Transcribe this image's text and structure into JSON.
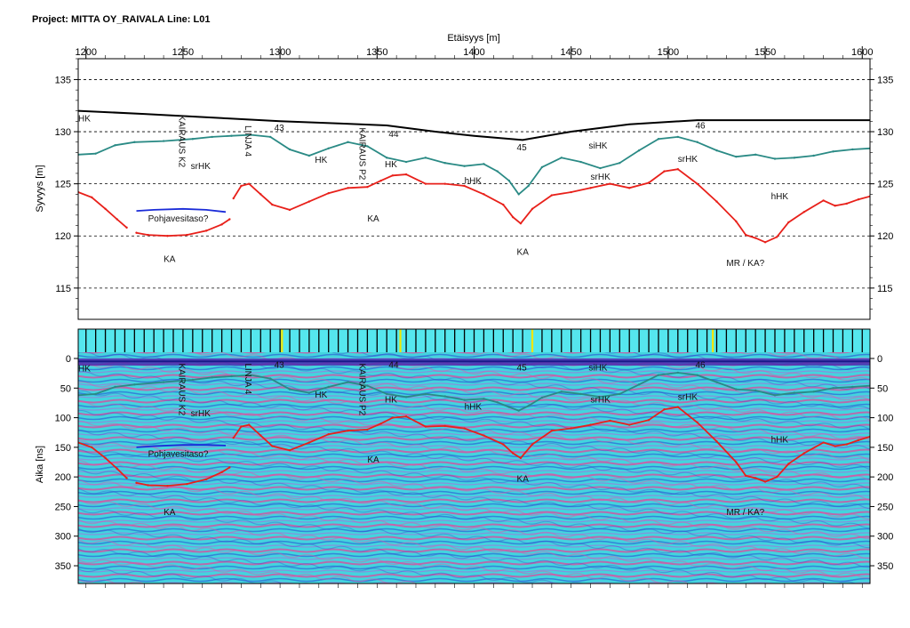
{
  "header": {
    "title": "Project: MITTA OY_RAIVALA  Line: L01"
  },
  "colors": {
    "surface": "#000000",
    "layer_hk": "#2a8a85",
    "bedrock_ka": "#e8201a",
    "groundwater": "#1a2bd8",
    "gpr_bg": "#41d2dc",
    "marker_strip": "#55e6ee"
  },
  "chart_data": [
    {
      "type": "line",
      "name": "elevation-profile",
      "xlabel": "Etäisyys [m]",
      "ylabel": "Syvyys [m]",
      "xlim": [
        1196,
        1604
      ],
      "ylim": [
        112,
        137
      ],
      "x_ticks": [
        1200,
        1250,
        1300,
        1350,
        1400,
        1450,
        1500,
        1550,
        1600
      ],
      "y_ticks": [
        135,
        130,
        125,
        120,
        115
      ],
      "grid": "dashed horizontal",
      "series": [
        {
          "key": "surface",
          "color": "#000000",
          "x": [
            1196,
            1230,
            1270,
            1300,
            1330,
            1355,
            1380,
            1400,
            1425,
            1450,
            1480,
            1515,
            1540,
            1604
          ],
          "y": [
            132.0,
            131.7,
            131.3,
            131.0,
            130.8,
            130.6,
            130.0,
            129.6,
            129.2,
            130.0,
            130.7,
            131.1,
            131.1,
            131.1
          ]
        },
        {
          "key": "hk-lower",
          "color": "#2a8a85",
          "x": [
            1196,
            1205,
            1215,
            1225,
            1240,
            1255,
            1265,
            1275,
            1285,
            1295,
            1305,
            1315,
            1325,
            1335,
            1345,
            1355,
            1365,
            1375,
            1385,
            1395,
            1405,
            1412,
            1418,
            1423,
            1428,
            1435,
            1445,
            1455,
            1465,
            1475,
            1485,
            1495,
            1505,
            1515,
            1525,
            1535,
            1545,
            1555,
            1565,
            1575,
            1585,
            1595,
            1604
          ],
          "y": [
            127.8,
            127.9,
            128.7,
            129.0,
            129.1,
            129.3,
            129.5,
            129.6,
            129.7,
            129.5,
            128.3,
            127.7,
            128.4,
            129.0,
            128.6,
            127.5,
            127.1,
            127.5,
            127.0,
            126.7,
            126.9,
            126.2,
            125.3,
            124.0,
            124.8,
            126.6,
            127.5,
            127.1,
            126.5,
            127.0,
            128.2,
            129.3,
            129.5,
            129.0,
            128.2,
            127.6,
            127.8,
            127.4,
            127.5,
            127.7,
            128.1,
            128.3,
            128.4
          ]
        },
        {
          "key": "ka-a",
          "color": "#e8201a",
          "x": [
            1196,
            1203,
            1210,
            1216,
            1221
          ],
          "y": [
            124.2,
            123.7,
            122.6,
            121.6,
            120.8
          ]
        },
        {
          "key": "ka-b",
          "color": "#e8201a",
          "x": [
            1226,
            1232,
            1242,
            1252,
            1262,
            1270,
            1274
          ],
          "y": [
            120.3,
            120.1,
            120.0,
            120.1,
            120.5,
            121.1,
            121.6
          ]
        },
        {
          "key": "ka-c",
          "color": "#e8201a",
          "x": [
            1276,
            1280,
            1284,
            1290,
            1296,
            1305,
            1315,
            1325,
            1335,
            1345,
            1352,
            1358,
            1365,
            1375,
            1385,
            1395,
            1405,
            1415,
            1420,
            1424,
            1430,
            1440,
            1450,
            1460,
            1470,
            1480,
            1490,
            1498,
            1505,
            1515,
            1525,
            1535,
            1540,
            1545,
            1550,
            1556,
            1562,
            1570,
            1580,
            1586,
            1592,
            1598,
            1604
          ],
          "y": [
            123.6,
            124.8,
            125.0,
            124.0,
            123.0,
            122.5,
            123.3,
            124.1,
            124.6,
            124.7,
            125.3,
            125.8,
            125.9,
            125.0,
            125.0,
            124.8,
            124.0,
            123.0,
            121.8,
            121.2,
            122.6,
            123.9,
            124.2,
            124.6,
            125.0,
            124.6,
            125.1,
            126.2,
            126.4,
            125.0,
            123.3,
            121.4,
            120.1,
            119.8,
            119.4,
            119.9,
            121.3,
            122.3,
            123.4,
            122.9,
            123.1,
            123.5,
            123.8
          ]
        },
        {
          "key": "groundwater",
          "color": "#1a2bd8",
          "x": [
            1226,
            1235,
            1250,
            1262,
            1272
          ],
          "y": [
            122.4,
            122.5,
            122.6,
            122.5,
            122.3
          ]
        }
      ],
      "labels": [
        {
          "text": "HK",
          "x": 1196,
          "y": 131.0,
          "color": "#000000",
          "rotate": 0
        },
        {
          "text": "43",
          "x": 1297,
          "y": 130.1,
          "color": "#000000",
          "rotate": 0
        },
        {
          "text": "44",
          "x": 1356,
          "y": 129.5,
          "color": "#000000",
          "rotate": 0
        },
        {
          "text": "45",
          "x": 1422,
          "y": 128.2,
          "color": "#000000",
          "rotate": 0
        },
        {
          "text": "46",
          "x": 1514,
          "y": 130.3,
          "color": "#000000",
          "rotate": 0
        },
        {
          "text": "KAIRAUS K2",
          "x": 1248,
          "y": 131.6,
          "color": "#000000",
          "rotate": 90
        },
        {
          "text": "LINJA 4",
          "x": 1282,
          "y": 130.6,
          "color": "#000000",
          "rotate": 90
        },
        {
          "text": "KAIRAUS P2",
          "x": 1341,
          "y": 130.4,
          "color": "#000000",
          "rotate": 90
        },
        {
          "text": "srHK",
          "x": 1254,
          "y": 126.4,
          "color": "#000000",
          "rotate": 0
        },
        {
          "text": "HK",
          "x": 1318,
          "y": 127.0,
          "color": "#000000",
          "rotate": 0
        },
        {
          "text": "HK",
          "x": 1354,
          "y": 126.6,
          "color": "#000000",
          "rotate": 0
        },
        {
          "text": "hHK",
          "x": 1395,
          "y": 125.0,
          "color": "#000000",
          "rotate": 0
        },
        {
          "text": "siHK",
          "x": 1459,
          "y": 128.4,
          "color": "#000000",
          "rotate": 0
        },
        {
          "text": "srHK",
          "x": 1460,
          "y": 125.4,
          "color": "#000000",
          "rotate": 0
        },
        {
          "text": "srHK",
          "x": 1505,
          "y": 127.1,
          "color": "#000000",
          "rotate": 0
        },
        {
          "text": "hHK",
          "x": 1553,
          "y": 123.5,
          "color": "#000000",
          "rotate": 0
        },
        {
          "text": "Pohjavesitaso?",
          "x": 1232,
          "y": 121.4,
          "color": "#000000",
          "rotate": 0
        },
        {
          "text": "KA",
          "x": 1345,
          "y": 121.4,
          "color": "#000000",
          "rotate": 0
        },
        {
          "text": "KA",
          "x": 1240,
          "y": 117.5,
          "color": "#000000",
          "rotate": 0
        },
        {
          "text": "KA",
          "x": 1422,
          "y": 118.2,
          "color": "#000000",
          "rotate": 0
        },
        {
          "text": "MR / KA?",
          "x": 1530,
          "y": 117.1,
          "color": "#000000",
          "rotate": 0
        }
      ]
    },
    {
      "type": "line",
      "name": "gpr-radargram",
      "xlabel": "",
      "ylabel": "Aika [ns]",
      "xlim": [
        1196,
        1604
      ],
      "ylim": [
        380,
        0
      ],
      "y_ticks": [
        0,
        50,
        100,
        150,
        200,
        250,
        300,
        350
      ],
      "grid": "none",
      "marker_strip": {
        "marker_x": [
          1301,
          1362,
          1430,
          1523
        ]
      },
      "series": [
        {
          "key": "gpr-surface",
          "color": "#1a1a8a",
          "x": [
            1196,
            1604
          ],
          "y": [
            5,
            5
          ]
        },
        {
          "key": "gpr-hk",
          "color": "#2a8a85",
          "x": [
            1196,
            1205,
            1215,
            1225,
            1240,
            1255,
            1265,
            1275,
            1285,
            1295,
            1305,
            1315,
            1325,
            1335,
            1345,
            1355,
            1365,
            1375,
            1385,
            1395,
            1405,
            1412,
            1418,
            1423,
            1428,
            1435,
            1445,
            1455,
            1465,
            1475,
            1485,
            1495,
            1505,
            1515,
            1525,
            1535,
            1545,
            1555,
            1565,
            1575,
            1585,
            1595,
            1604
          ],
          "y": [
            62,
            60,
            48,
            44,
            40,
            36,
            32,
            30,
            28,
            34,
            52,
            58,
            48,
            40,
            46,
            60,
            65,
            60,
            64,
            70,
            68,
            74,
            82,
            88,
            80,
            66,
            56,
            60,
            65,
            60,
            44,
            28,
            24,
            28,
            40,
            52,
            54,
            62,
            58,
            56,
            50,
            48,
            46
          ]
        },
        {
          "key": "gpr-ka-a",
          "color": "#e8201a",
          "x": [
            1196,
            1203,
            1210,
            1216,
            1221
          ],
          "y": [
            142,
            150,
            168,
            186,
            202
          ]
        },
        {
          "key": "gpr-ka-b",
          "color": "#e8201a",
          "x": [
            1226,
            1232,
            1242,
            1252,
            1262,
            1270,
            1274
          ],
          "y": [
            210,
            214,
            215,
            212,
            204,
            192,
            184
          ]
        },
        {
          "key": "gpr-ka-c",
          "color": "#e8201a",
          "x": [
            1276,
            1280,
            1284,
            1290,
            1296,
            1305,
            1315,
            1325,
            1335,
            1345,
            1352,
            1358,
            1365,
            1375,
            1385,
            1395,
            1405,
            1415,
            1420,
            1424,
            1430,
            1440,
            1450,
            1460,
            1470,
            1480,
            1490,
            1498,
            1505,
            1515,
            1525,
            1535,
            1540,
            1545,
            1550,
            1556,
            1562,
            1570,
            1580,
            1586,
            1592,
            1598,
            1604
          ],
          "y": [
            134,
            115,
            112,
            130,
            148,
            155,
            142,
            128,
            122,
            120,
            110,
            100,
            98,
            115,
            114,
            118,
            130,
            145,
            160,
            168,
            145,
            122,
            118,
            112,
            105,
            112,
            104,
            86,
            82,
            108,
            140,
            175,
            198,
            202,
            208,
            200,
            178,
            160,
            142,
            148,
            145,
            138,
            132
          ]
        },
        {
          "key": "gpr-groundwater",
          "color": "#1a2bd8",
          "x": [
            1226,
            1235,
            1250,
            1262,
            1272
          ],
          "y": [
            150,
            148,
            146,
            146,
            147
          ]
        }
      ],
      "labels": [
        {
          "text": "HK",
          "x": 1196,
          "y": 22,
          "color": "#ffffff",
          "rotate": 0
        },
        {
          "text": "43",
          "x": 1297,
          "y": 16,
          "color": "#ffffff",
          "rotate": 0
        },
        {
          "text": "44",
          "x": 1356,
          "y": 16,
          "color": "#ffffff",
          "rotate": 0
        },
        {
          "text": "45",
          "x": 1422,
          "y": 20,
          "color": "#ffffff",
          "rotate": 0
        },
        {
          "text": "46",
          "x": 1514,
          "y": 16,
          "color": "#ffffff",
          "rotate": 0
        },
        {
          "text": "KAIRAUS K2",
          "x": 1248,
          "y": 8,
          "color": "#ffffff",
          "rotate": 90
        },
        {
          "text": "LINJA 4",
          "x": 1282,
          "y": 8,
          "color": "#ffffff",
          "rotate": 90
        },
        {
          "text": "KAIRAUS P2",
          "x": 1341,
          "y": 8,
          "color": "#ffffff",
          "rotate": 90
        },
        {
          "text": "srHK",
          "x": 1254,
          "y": 98,
          "color": "#ffffff",
          "rotate": 0
        },
        {
          "text": "HK",
          "x": 1318,
          "y": 66,
          "color": "#ffffff",
          "rotate": 0
        },
        {
          "text": "HK",
          "x": 1354,
          "y": 74,
          "color": "#ffffff",
          "rotate": 0
        },
        {
          "text": "hHK",
          "x": 1395,
          "y": 86,
          "color": "#ffffff",
          "rotate": 0
        },
        {
          "text": "siHK",
          "x": 1459,
          "y": 20,
          "color": "#ffffff",
          "rotate": 0
        },
        {
          "text": "srHK",
          "x": 1460,
          "y": 74,
          "color": "#ffffff",
          "rotate": 0
        },
        {
          "text": "srHK",
          "x": 1505,
          "y": 70,
          "color": "#ffffff",
          "rotate": 0
        },
        {
          "text": "hHK",
          "x": 1553,
          "y": 142,
          "color": "#ffffff",
          "rotate": 0
        },
        {
          "text": "Pohjavesitaso?",
          "x": 1232,
          "y": 166,
          "color": "#ffffff",
          "rotate": 0
        },
        {
          "text": "KA",
          "x": 1345,
          "y": 176,
          "color": "#ffffff",
          "rotate": 0
        },
        {
          "text": "KA",
          "x": 1240,
          "y": 264,
          "color": "#ffffff",
          "rotate": 0
        },
        {
          "text": "KA",
          "x": 1422,
          "y": 208,
          "color": "#ffffff",
          "rotate": 0
        },
        {
          "text": "MR / KA?",
          "x": 1530,
          "y": 264,
          "color": "#ffffff",
          "rotate": 0
        }
      ]
    }
  ]
}
